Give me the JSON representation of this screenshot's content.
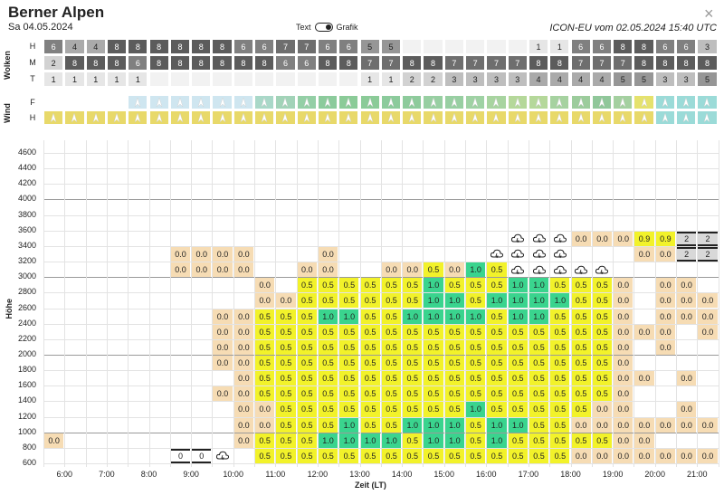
{
  "header": {
    "title": "Berner Alpen",
    "date": "Sa 04.05.2024",
    "model": "ICON-EU vom 02.05.2024 15:40 UTC",
    "toggle_left": "Text",
    "toggle_right": "Grafik",
    "close_symbol": "×"
  },
  "clouds": {
    "label": "Wolken",
    "rows": [
      "H",
      "M",
      "T"
    ],
    "H": [
      6,
      4,
      4,
      8,
      8,
      8,
      8,
      8,
      8,
      6,
      6,
      7,
      7,
      6,
      6,
      5,
      5,
      null,
      null,
      null,
      null,
      null,
      null,
      1,
      1,
      6,
      6,
      8,
      8,
      6,
      6,
      3
    ],
    "M": [
      2,
      8,
      8,
      8,
      6,
      8,
      8,
      8,
      8,
      8,
      8,
      6,
      6,
      8,
      8,
      7,
      7,
      8,
      8,
      7,
      7,
      7,
      7,
      8,
      8,
      7,
      7,
      7,
      8,
      8,
      8,
      8
    ],
    "T": [
      1,
      1,
      1,
      1,
      1,
      null,
      null,
      null,
      null,
      null,
      null,
      null,
      null,
      null,
      null,
      1,
      1,
      2,
      2,
      3,
      3,
      3,
      3,
      4,
      4,
      4,
      4,
      5,
      5,
      3,
      3,
      5
    ]
  },
  "wind": {
    "label": "Wind",
    "rows": [
      "F",
      "H"
    ],
    "F_colors": [
      "#ffffff",
      "#ffffff",
      "#ffffff",
      "#ffffff",
      "#cfe6f0",
      "#cfe6f0",
      "#cfe6f0",
      "#cfe6f0",
      "#cfe6f0",
      "#cfe6f0",
      "#a9d8c8",
      "#a2d3b8",
      "#94cfa6",
      "#8ccb9c",
      "#8bcb98",
      "#8bcb98",
      "#8ccb9c",
      "#8ecb9c",
      "#98cfa2",
      "#98cfa2",
      "#9fd2a4",
      "#a8d4a0",
      "#b5d89a",
      "#b5d89a",
      "#a6d2a0",
      "#9ccc9c",
      "#90c79a",
      "#a4d0a0",
      "#e5e26d",
      "#9bdbd8",
      "#9bdbd8",
      "#9bdbd8"
    ],
    "H_color": "#e8d96a"
  },
  "chart_data": {
    "type": "heatmap",
    "ylabel": "Höhe",
    "xlabel": "Zeit (LT)",
    "y_ticks": [
      600,
      800,
      1000,
      1200,
      1400,
      1600,
      1800,
      2000,
      2200,
      2400,
      2600,
      2800,
      3000,
      3200,
      3400,
      3600,
      3800,
      4000,
      4200,
      4400,
      4600
    ],
    "x_ticks": [
      "6:00",
      "7:00",
      "8:00",
      "9:00",
      "10:00",
      "11:00",
      "12:00",
      "13:00",
      "14:00",
      "15:00",
      "16:00",
      "17:00",
      "18:00",
      "19:00",
      "20:00",
      "21:00"
    ],
    "x_start_hour": 5.5,
    "x_step_hours": 0.5,
    "levels": [
      3400,
      3200,
      3000,
      2800,
      2600,
      2400,
      2200,
      2000,
      1800,
      1600,
      1400,
      1200,
      1000,
      800,
      600
    ],
    "cells": [
      [
        null,
        null,
        null,
        null,
        null,
        null,
        null,
        null,
        null,
        null,
        null,
        null,
        null,
        null,
        null,
        null,
        null,
        null,
        null,
        null,
        null,
        null,
        null,
        null,
        null,
        null,
        null,
        null,
        null,
        null,
        null,
        null
      ],
      [
        null,
        null,
        null,
        null,
        null,
        null,
        null,
        null,
        null,
        null,
        null,
        null,
        null,
        null,
        null,
        null,
        null,
        null,
        null,
        null,
        null,
        null,
        "C",
        "C",
        "C",
        0.0,
        0.0,
        0.0,
        0.9,
        0.9,
        0.0,
        0.0
      ],
      [
        null,
        null,
        null,
        null,
        null,
        null,
        0.0,
        0.0,
        0.0,
        0.0,
        null,
        null,
        null,
        0.0,
        null,
        null,
        null,
        null,
        null,
        null,
        null,
        "C",
        "C",
        "C",
        "C",
        null,
        null,
        null,
        0.0,
        0.0,
        0.0,
        0.0
      ],
      [
        null,
        null,
        null,
        null,
        null,
        null,
        0.0,
        0.0,
        0.0,
        0.0,
        null,
        null,
        0.0,
        0.0,
        null,
        null,
        0.0,
        0.0,
        0.5,
        0.0,
        1.0,
        0.5,
        "C",
        "C",
        "C",
        "C",
        "C",
        null,
        null,
        null,
        null,
        null
      ],
      [
        null,
        null,
        null,
        null,
        null,
        null,
        null,
        null,
        null,
        null,
        0.0,
        null,
        0.5,
        0.5,
        0.5,
        0.5,
        0.5,
        0.5,
        1.0,
        0.5,
        0.5,
        0.5,
        1.0,
        1.0,
        0.5,
        0.5,
        0.5,
        0.0,
        null,
        0.0,
        0.0,
        null
      ],
      [
        null,
        null,
        null,
        null,
        null,
        null,
        null,
        null,
        null,
        null,
        0.0,
        0.0,
        0.5,
        0.5,
        0.5,
        0.5,
        0.5,
        0.5,
        1.0,
        1.0,
        0.5,
        1.0,
        1.0,
        1.0,
        1.0,
        0.5,
        0.5,
        0.0,
        null,
        0.0,
        0.0,
        0.0
      ],
      [
        null,
        null,
        null,
        null,
        null,
        null,
        null,
        null,
        0.0,
        0.0,
        0.5,
        0.5,
        0.5,
        1.0,
        1.0,
        0.5,
        0.5,
        1.0,
        1.0,
        1.0,
        1.0,
        0.5,
        1.0,
        1.0,
        0.5,
        0.5,
        0.5,
        0.0,
        null,
        0.0,
        0.0,
        0.0
      ],
      [
        null,
        null,
        null,
        null,
        null,
        null,
        null,
        null,
        0.0,
        0.0,
        0.5,
        0.5,
        0.5,
        0.5,
        0.5,
        0.5,
        0.5,
        0.5,
        0.5,
        0.5,
        0.5,
        0.5,
        0.5,
        0.5,
        0.5,
        0.5,
        0.5,
        0.0,
        0.0,
        0.0,
        null,
        0.0
      ],
      [
        null,
        null,
        null,
        null,
        null,
        null,
        null,
        null,
        0.0,
        0.0,
        0.5,
        0.5,
        0.5,
        0.5,
        0.5,
        0.5,
        0.5,
        0.5,
        0.5,
        0.5,
        0.5,
        0.5,
        0.5,
        0.5,
        0.5,
        0.5,
        0.5,
        0.0,
        null,
        0.0,
        null,
        null
      ],
      [
        null,
        null,
        null,
        null,
        null,
        null,
        null,
        null,
        0.0,
        0.0,
        0.5,
        0.5,
        0.5,
        0.5,
        0.5,
        0.5,
        0.5,
        0.5,
        0.5,
        0.5,
        0.5,
        0.5,
        0.5,
        0.5,
        0.5,
        0.5,
        0.5,
        0.0,
        null,
        null,
        null,
        null
      ],
      [
        null,
        null,
        null,
        null,
        null,
        null,
        null,
        null,
        null,
        0.0,
        0.5,
        0.5,
        0.5,
        0.5,
        0.5,
        0.5,
        0.5,
        0.5,
        0.5,
        0.5,
        0.5,
        0.5,
        0.5,
        0.5,
        0.5,
        0.5,
        0.5,
        0.0,
        0.0,
        null,
        0.0,
        null
      ],
      [
        null,
        null,
        null,
        null,
        null,
        null,
        null,
        null,
        0.0,
        0.0,
        0.5,
        0.5,
        0.5,
        0.5,
        0.5,
        0.5,
        0.5,
        0.5,
        0.5,
        0.5,
        0.5,
        0.5,
        0.5,
        0.5,
        0.5,
        0.5,
        0.5,
        0.0,
        null,
        null,
        null,
        null
      ],
      [
        null,
        null,
        null,
        null,
        null,
        null,
        null,
        null,
        null,
        0.0,
        0.0,
        0.5,
        0.5,
        0.5,
        0.5,
        0.5,
        0.5,
        0.5,
        0.5,
        0.5,
        1.0,
        0.5,
        0.5,
        0.5,
        0.5,
        0.5,
        0.0,
        0.0,
        null,
        null,
        0.0,
        null
      ],
      [
        null,
        null,
        null,
        null,
        null,
        null,
        null,
        null,
        null,
        0.0,
        0.0,
        0.5,
        0.5,
        0.5,
        1.0,
        0.5,
        0.5,
        1.0,
        1.0,
        1.0,
        0.5,
        1.0,
        1.0,
        0.5,
        0.5,
        0.0,
        0.0,
        0.0,
        0.0,
        0.0,
        0.0,
        0.0
      ],
      [
        0.0,
        null,
        null,
        null,
        null,
        null,
        null,
        null,
        null,
        0.0,
        0.5,
        0.5,
        0.5,
        1.0,
        1.0,
        1.0,
        1.0,
        0.5,
        1.0,
        1.0,
        0.5,
        1.0,
        0.5,
        0.5,
        0.5,
        0.5,
        0.5,
        0.0,
        0.0,
        null,
        null,
        null
      ]
    ],
    "bottom_row_600": [
      null,
      null,
      null,
      null,
      null,
      null,
      "0",
      "0",
      "C",
      null,
      0.5,
      0.5,
      0.5,
      0.5,
      0.5,
      0.5,
      0.5,
      0.5,
      0.5,
      0.5,
      0.5,
      0.5,
      0.5,
      0.5,
      0.5,
      0.0,
      0.0,
      0.0,
      0.0,
      0.0,
      0.0,
      0.0
    ],
    "cloudbase_labels_3400": [
      "2"
    ],
    "cloudbase_labels_3200": [
      "2"
    ],
    "legend_colors": {
      "zero": "#f6dcb4",
      "half": "#f2f22a",
      "one": "#3ad48e",
      "other": "#fff"
    }
  }
}
